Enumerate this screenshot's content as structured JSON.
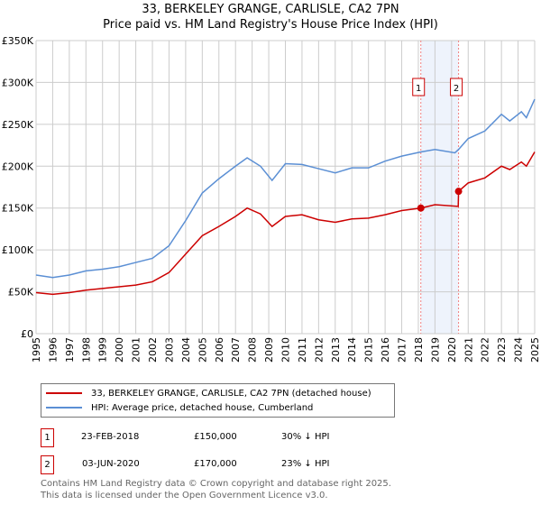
{
  "chart_data": {
    "type": "line",
    "title": "33, BERKELEY GRANGE, CARLISLE, CA2 7PN",
    "subtitle": "Price paid vs. HM Land Registry's House Price Index (HPI)",
    "xlim": [
      1995,
      2025
    ],
    "ylim": [
      0,
      350000
    ],
    "yticks": [
      {
        "v": 0,
        "label": "£0"
      },
      {
        "v": 50000,
        "label": "£50K"
      },
      {
        "v": 100000,
        "label": "£100K"
      },
      {
        "v": 150000,
        "label": "£150K"
      },
      {
        "v": 200000,
        "label": "£200K"
      },
      {
        "v": 250000,
        "label": "£250K"
      },
      {
        "v": 300000,
        "label": "£300K"
      },
      {
        "v": 350000,
        "label": "£350K"
      }
    ],
    "xticks": [
      "1995",
      "1996",
      "1997",
      "1998",
      "1999",
      "2000",
      "2001",
      "2002",
      "2003",
      "2004",
      "2005",
      "2006",
      "2007",
      "2008",
      "2009",
      "2010",
      "2011",
      "2012",
      "2013",
      "2014",
      "2015",
      "2016",
      "2017",
      "2018",
      "2019",
      "2020",
      "2021",
      "2022",
      "2023",
      "2024",
      "2025"
    ],
    "grid": true,
    "series": [
      {
        "name": "33, BERKELEY GRANGE, CARLISLE, CA2 7PN (detached house)",
        "color": "#cc0000",
        "points": [
          [
            1995,
            49000
          ],
          [
            1996,
            47000
          ],
          [
            1997,
            49000
          ],
          [
            1998,
            52000
          ],
          [
            1999,
            54000
          ],
          [
            2000,
            56000
          ],
          [
            2001,
            58000
          ],
          [
            2002,
            62000
          ],
          [
            2003,
            73000
          ],
          [
            2004,
            95000
          ],
          [
            2005,
            117000
          ],
          [
            2006,
            128000
          ],
          [
            2007,
            140000
          ],
          [
            2007.7,
            150000
          ],
          [
            2008.5,
            143000
          ],
          [
            2009.2,
            128000
          ],
          [
            2010,
            140000
          ],
          [
            2011,
            142000
          ],
          [
            2012,
            136000
          ],
          [
            2013,
            133000
          ],
          [
            2014,
            137000
          ],
          [
            2015,
            138000
          ],
          [
            2016,
            142000
          ],
          [
            2017,
            147000
          ],
          [
            2018.15,
            150000
          ],
          [
            2019,
            154000
          ],
          [
            2020.4,
            152000
          ],
          [
            2020.42,
            170000
          ],
          [
            2021,
            180000
          ],
          [
            2022,
            186000
          ],
          [
            2023,
            200000
          ],
          [
            2023.5,
            196000
          ],
          [
            2024.2,
            205000
          ],
          [
            2024.5,
            200000
          ],
          [
            2025,
            217000
          ]
        ]
      },
      {
        "name": "HPI: Average price, detached house, Cumberland",
        "color": "#5b8fd4",
        "points": [
          [
            1995,
            70000
          ],
          [
            1996,
            67000
          ],
          [
            1997,
            70000
          ],
          [
            1998,
            75000
          ],
          [
            1999,
            77000
          ],
          [
            2000,
            80000
          ],
          [
            2001,
            85000
          ],
          [
            2002,
            90000
          ],
          [
            2003,
            105000
          ],
          [
            2004,
            135000
          ],
          [
            2005,
            168000
          ],
          [
            2006,
            185000
          ],
          [
            2007,
            200000
          ],
          [
            2007.7,
            210000
          ],
          [
            2008.5,
            200000
          ],
          [
            2009.2,
            183000
          ],
          [
            2010,
            203000
          ],
          [
            2011,
            202000
          ],
          [
            2012,
            197000
          ],
          [
            2013,
            192000
          ],
          [
            2014,
            198000
          ],
          [
            2015,
            198000
          ],
          [
            2016,
            206000
          ],
          [
            2017,
            212000
          ],
          [
            2018.15,
            217000
          ],
          [
            2019,
            220000
          ],
          [
            2020.2,
            216000
          ],
          [
            2020.42,
            220000
          ],
          [
            2021,
            233000
          ],
          [
            2022,
            242000
          ],
          [
            2023,
            262000
          ],
          [
            2023.5,
            254000
          ],
          [
            2024.2,
            265000
          ],
          [
            2024.5,
            258000
          ],
          [
            2025,
            280000
          ]
        ]
      }
    ],
    "legend": "below",
    "annotations": [
      {
        "label": "1",
        "x": 2018.15,
        "y": 150000
      },
      {
        "label": "2",
        "x": 2020.42,
        "y": 170000
      }
    ]
  },
  "sales": [
    {
      "num": "1",
      "date": "23-FEB-2018",
      "price": "£150,000",
      "hpi": "30% ↓ HPI"
    },
    {
      "num": "2",
      "date": "03-JUN-2020",
      "price": "£170,000",
      "hpi": "23% ↓ HPI"
    }
  ],
  "footer": {
    "line1": "Contains HM Land Registry data © Crown copyright and database right 2025.",
    "line2": "This data is licensed under the Open Government Licence v3.0."
  }
}
